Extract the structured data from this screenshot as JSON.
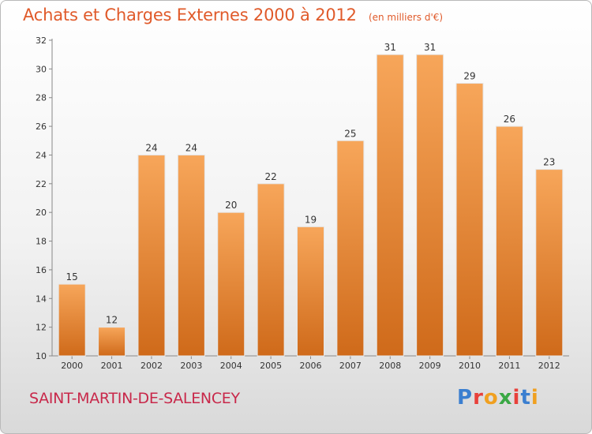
{
  "chart_data": {
    "type": "bar",
    "title": "Achats et Charges Externes 2000 à 2012",
    "subtitle": "(en milliers d'€)",
    "categories": [
      "2000",
      "2001",
      "2002",
      "2003",
      "2004",
      "2005",
      "2006",
      "2007",
      "2008",
      "2009",
      "2010",
      "2011",
      "2012"
    ],
    "values": [
      15,
      12,
      24,
      24,
      20,
      22,
      19,
      25,
      31,
      31,
      29,
      26,
      23
    ],
    "ylim": [
      10,
      32
    ],
    "yticks": [
      10,
      12,
      14,
      16,
      18,
      20,
      22,
      24,
      26,
      28,
      30,
      32
    ],
    "grid": false,
    "bar_color_top": "#f7a65a",
    "bar_color_bottom": "#cf6a1a"
  },
  "footer": {
    "location": "SAINT-MARTIN-DE-SALENCEY",
    "brand": "Proxiti",
    "brand_colors": [
      "#3b7fd0",
      "#e8403a",
      "#f0a020",
      "#3aa845",
      "#e8403a",
      "#3b7fd0",
      "#f0a020"
    ]
  }
}
